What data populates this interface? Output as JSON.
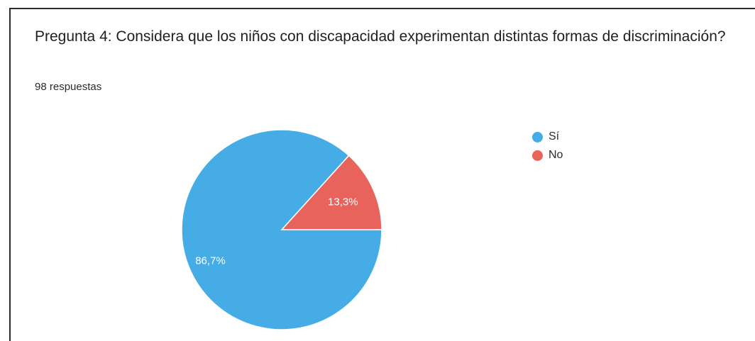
{
  "header": {
    "title": "Pregunta 4: Considera que los niños con discapacidad experimentan distintas formas de discriminación?",
    "subtitle": "98 respuestas"
  },
  "chart_data": {
    "type": "pie",
    "categories": [
      "Sí",
      "No"
    ],
    "values": [
      86.7,
      13.3
    ],
    "labels": [
      "86,7%",
      "13,3%"
    ],
    "colors": [
      "#45ace6",
      "#e8635c"
    ],
    "title": "Pregunta 4: Considera que los niños con discapacidad experimentan distintas formas de discriminación?",
    "legend_position": "right",
    "start": "3 o'clock",
    "direction": "counterclockwise"
  },
  "legend": {
    "items": [
      {
        "label": "Sí",
        "color": "#45ace6"
      },
      {
        "label": "No",
        "color": "#e8635c"
      }
    ]
  }
}
